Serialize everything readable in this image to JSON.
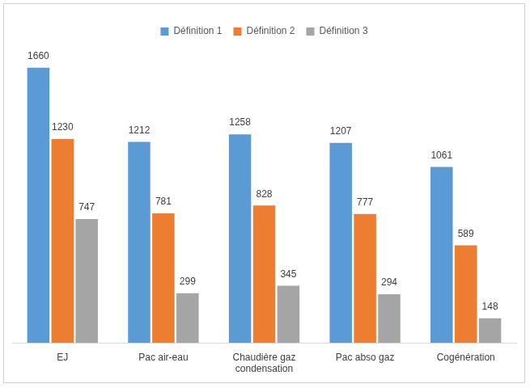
{
  "chart_data": {
    "type": "bar",
    "categories": [
      "EJ",
      "Pac air-eau",
      "Chaudière gaz condensation",
      "Pac abso gaz",
      "Cogénération"
    ],
    "series": [
      {
        "name": "Définition 1",
        "color": "#5b9bd5",
        "values": [
          1660,
          1212,
          1258,
          1207,
          1061
        ]
      },
      {
        "name": "Définition 2",
        "color": "#ed7d31",
        "values": [
          1230,
          781,
          828,
          777,
          589
        ]
      },
      {
        "name": "Définition 3",
        "color": "#a5a5a5",
        "values": [
          747,
          299,
          345,
          294,
          148
        ]
      }
    ],
    "legend": "top",
    "data_labels": true,
    "grid": false,
    "tick_labels": "x"
  }
}
